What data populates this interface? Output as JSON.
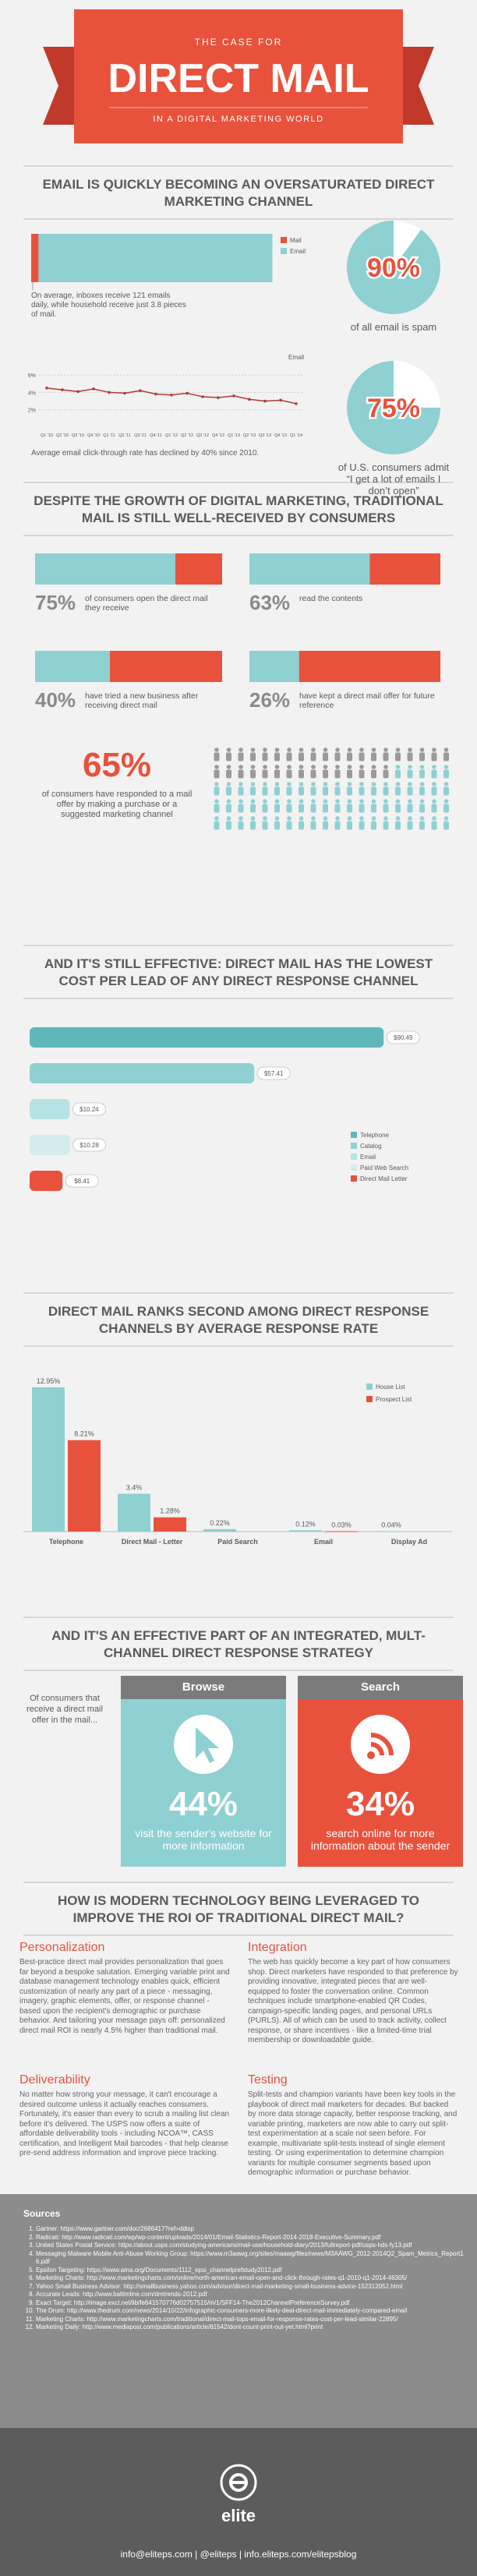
{
  "header": {
    "kicker": "THE CASE FOR",
    "title": "DIRECT MAIL",
    "subtitle": "IN A DIGITAL MARKETING WORLD"
  },
  "headings": [
    "EMAIL IS QUICKLY BECOMING AN OVERSATURATED DIRECT MARKETING CHANNEL",
    "DESPITE THE GROWTH OF DIGITAL MARKETING, TRADITIONAL MAIL IS STILL WELL-RECEIVED BY CONSUMERS",
    "AND IT'S STILL EFFECTIVE: DIRECT MAIL HAS THE LOWEST COST PER LEAD OF ANY DIRECT RESPONSE CHANNEL",
    "DIRECT MAIL RANKS SECOND AMONG DIRECT RESPONSE CHANNELS BY AVERAGE RESPONSE RATE",
    "AND IT'S AN EFFECTIVE PART OF AN INTEGRATED, MULT-CHANNEL DIRECT RESPONSE STRATEGY",
    "HOW IS MODERN TECHNOLOGY BEING LEVERAGED TO IMPROVE THE ROI OF TRADITIONAL DIRECT MAIL?"
  ],
  "chart_data": [
    {
      "type": "stacked-hbar",
      "series": [
        {
          "name": "Mail",
          "color": "#e8523c",
          "values": [
            3.8
          ]
        },
        {
          "name": "Email",
          "color": "#8fd0d2",
          "values": [
            121
          ]
        }
      ],
      "xlim": [
        0,
        125
      ],
      "annotation": "On average, inboxes receive 121 emails daily, while household receive just 3.8 pieces of mail."
    },
    {
      "type": "pie",
      "values": [
        90
      ],
      "value_labels": [
        "90%"
      ],
      "color": "#8fd0d2",
      "caption": "of all email is spam"
    },
    {
      "type": "line",
      "categories": [
        "Q1 '10",
        "Q2 '10",
        "Q3 '10",
        "Q4 '10",
        "Q1 '11",
        "Q2 '11",
        "Q3 '11",
        "Q4 '11",
        "Q1 '12",
        "Q2 '12",
        "Q3 '12",
        "Q4 '12",
        "Q1 '13",
        "Q2 '13",
        "Q3 '13",
        "Q4 '13",
        "Q1 '14"
      ],
      "series": [
        {
          "name": "Email",
          "color": "#b23a3a",
          "values": [
            4.5,
            4.3,
            4.1,
            4.4,
            4.0,
            3.9,
            4.2,
            3.8,
            3.7,
            3.9,
            3.5,
            3.4,
            3.6,
            3.2,
            3.0,
            3.1,
            2.7
          ]
        }
      ],
      "ylim": [
        0,
        7
      ],
      "yticks": [
        {
          "value": 2,
          "label": "2%"
        },
        {
          "value": 4,
          "label": "4%"
        },
        {
          "value": 6,
          "label": "6%"
        }
      ],
      "grid": true,
      "caption": "Average email click-through rate has declined by 40% since 2010."
    },
    {
      "type": "pie",
      "values": [
        75
      ],
      "value_labels": [
        "75%"
      ],
      "color": "#8fd0d2",
      "caption": "of U.S. consumers admit “I get a lot of emails I don’t open”"
    },
    {
      "type": "progress",
      "values": [
        75,
        63,
        40,
        26
      ],
      "value_labels": [
        "75%",
        "63%",
        "40%",
        "26%"
      ],
      "captions": [
        "of consumers open the direct mail they receive",
        "read the contents",
        "have tried a new business after receiving direct mail",
        "have kept a direct mail offer for future reference"
      ],
      "color": "#8fd0d2",
      "remainder_color": "#e8523c"
    },
    {
      "type": "waffle",
      "values": [
        65
      ],
      "value_labels": [
        "65%"
      ],
      "caption": "of consumers have responded to a mail offer by making a purchase or a suggested marketing channel",
      "color": "#8fd0d2",
      "base_color": "#9a9a9a"
    },
    {
      "type": "hbar",
      "categories": [
        "Telephone",
        "Catalog",
        "Email",
        "Paid Web Search",
        "Direct Mail Letter"
      ],
      "values": [
        90.49,
        57.41,
        10.24,
        10.28,
        8.41
      ],
      "value_labels": [
        "$90.49",
        "$57.41",
        "$10.24",
        "$10.28",
        "$8.41"
      ],
      "colors": [
        "#5fb7bb",
        "#8fd0d2",
        "#b7e2e3",
        "#d3eced",
        "#e8523c"
      ],
      "xlim": [
        0,
        100
      ],
      "legend": "right"
    },
    {
      "type": "bar",
      "categories": [
        "Telephone",
        "Direct Mail - Letter",
        "Paid Search",
        "Email",
        "Display Ad"
      ],
      "series": [
        {
          "name": "House List",
          "color": "#8fd0d2",
          "values": [
            12.95,
            3.4,
            0.22,
            0.12,
            0.04
          ],
          "value_labels": [
            "12.95%",
            "3.4%",
            "0.22%",
            "0.12%",
            "0.04%"
          ]
        },
        {
          "name": "Prospect List",
          "color": "#e8523c",
          "values": [
            8.21,
            1.28,
            null,
            0.03,
            null
          ],
          "value_labels": [
            "8.21%",
            "1.28%",
            null,
            "0.03%",
            null
          ]
        }
      ],
      "ylim": [
        0,
        14
      ],
      "legend": "top-right"
    },
    {
      "type": "stat",
      "intro": "Of consumers that receive a direct mail offer in the mail...",
      "categories": [
        "Browse",
        "Search"
      ],
      "values": [
        44,
        34
      ],
      "value_labels": [
        "44%",
        "34%"
      ],
      "captions": [
        "visit the sender's website for more information",
        "search online for more information about the sender"
      ],
      "colors": [
        "#8fd0d2",
        "#e8523c"
      ]
    }
  ],
  "tech": {
    "items": [
      {
        "heading": "Personalization",
        "text": "Best-practice direct mail provides personalization that goes far beyond a bespoke salutation. Emerging variable print and database management technology enables quick, efficient customization of nearly any part of a piece - messaging, imagery, graphic elements, offer, or response channel - based upon the recipient's demographic or purchase behavior. And tailoring your message pays off: personalized direct mail ROI is nearly 4.5% higher than traditional mail."
      },
      {
        "heading": "Integration",
        "text": "The web has quickly become a key part of how consumers shop. Direct marketers have responded to that preference by providing innovative, integrated pieces that are well-equipped to foster the conversation online. Common techniques include smartphone-enabled QR Codes, campaign-specific landing pages, and personal URLs (PURLS). All of which can be used to track activity, collect response, or share incentives - like a limited-time trial membership or downloadable guide."
      },
      {
        "heading": "Deliverability",
        "text": "No matter how strong your message, it can't encourage a desired outcome unless it actually reaches consumers. Fortunately, it's easier than every to scrub a mailing list clean before it's delivered. The USPS now offers a suite of affordable deliverability tools - including NCOA™, CASS certification, and Intelligent Mail barcodes - that help cleanse pre-send address information and improve piece tracking."
      },
      {
        "heading": "Testing",
        "text": "Split-tests and champion variants have been key tools in the playbook of direct mail marketers for decades. But backed by more data storage capacity, better response tracking, and variable printing, marketers are now able to carry out split-test experimentation at a scale not seen before. For example, multivariate split-tests instead of single element testing. Or using experimentation to determine champion variants for multiple consumer segments based upon demographic information or purchase behavior."
      }
    ]
  },
  "sources": {
    "title": "Sources",
    "items": [
      "Gartner: https://www.gartner.com/doc/2686417?ref=ddisp",
      "Radicati: http://www.radicati.com/wp/wp-content/uploads/2014/01/Email-Statistics-Report-2014-2018-Executive-Summary.pdf",
      "United States Postal Service: https://about.usps.com/studying-americans/mail-use/household-diary/2013/fullreport-pdf/usps-hds-fy13.pdf",
      "Messaging Malware Mobile Anti-Abuse Working Group: https://www.m3aawg.org/sites/maawg/files/news/M3AAWG_2012-2014Q2_Spam_Metrics_Report16.pdf",
      "Epsilon Targeting: https://www.ama.org/Documents/1112_epsi_channelprefstudy2012.pdf",
      "Marketing Charts: http://www.marketingcharts.com/online/north-american-email-open-and-click-through-rates-q1-2010-q1-2014-46305/",
      "Yahoo Small Business Advisor: http://smallbusiness.yahoo.com/advisor/direct-mail-marketing-small-business-advice-152312052.html",
      "Accurate Leads: http://www.baltimline.com/dmtrends-2012.pdf",
      "Exact Target: http://image.exct.net/lib/fe641570776d02757515/m/1/SFF14-The2012ChannelPreferenceSurvey.pdf",
      "The Drum: http://www.thedrum.com/news/2014/10/22/infographic-consumers-more-likely-deal-direct-mail-immediately-compared-email",
      "Marketing Charts: http://www.marketingcharts.com/traditional/direct-mail-tops-email-for-response-rates-cost-per-lead-similar-22895/",
      "Marketing Daily: http://www.mediapost.com/publications/article/81542/dont-count-print-out-yet.html?print"
    ]
  },
  "footer": {
    "logo": "elite",
    "contact": "info@eliteps.com | @eliteps | info.eliteps.com/elitepsblog"
  }
}
